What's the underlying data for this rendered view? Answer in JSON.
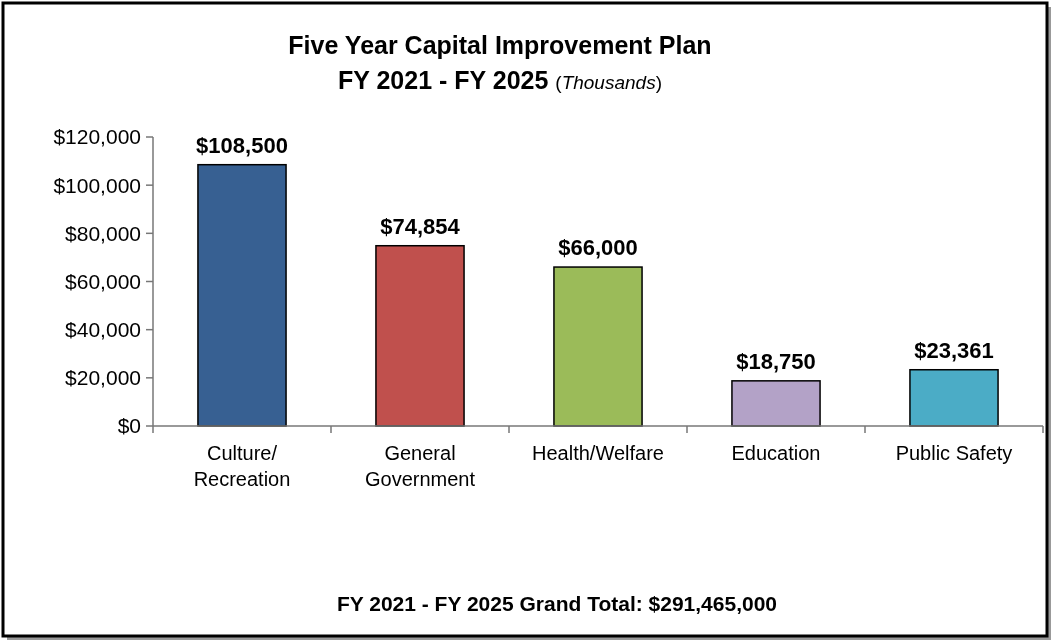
{
  "chart_data": {
    "type": "bar",
    "title": "Five Year Capital Improvement Plan",
    "subtitle": "FY 2021 - FY 2025 (Thousands)",
    "categories": [
      "Culture/Recreation",
      "General Government",
      "Health/Welfare",
      "Education",
      "Public Safety"
    ],
    "values": [
      108500,
      74854,
      66000,
      18750,
      23361
    ],
    "colors": [
      "#376092",
      "#c0504d",
      "#9bbb59",
      "#b3a2c7",
      "#4bacc6"
    ],
    "value_labels": [
      "$108,500",
      "$74,854",
      "$66,000",
      "$18,750",
      "$23,361"
    ],
    "ylim": [
      0,
      120000
    ],
    "yticks": [
      {
        "value": 0,
        "label": "$0"
      },
      {
        "value": 20000,
        "label": "$20,000"
      },
      {
        "value": 40000,
        "label": "$40,000"
      },
      {
        "value": 60000,
        "label": "$60,000"
      },
      {
        "value": 80000,
        "label": "$80,000"
      },
      {
        "value": 100000,
        "label": "$100,000"
      },
      {
        "value": 120000,
        "label": "$120,000"
      }
    ],
    "annotations": [
      "FY 2021 - FY 2025 Grand Total: $291,465,000"
    ]
  }
}
